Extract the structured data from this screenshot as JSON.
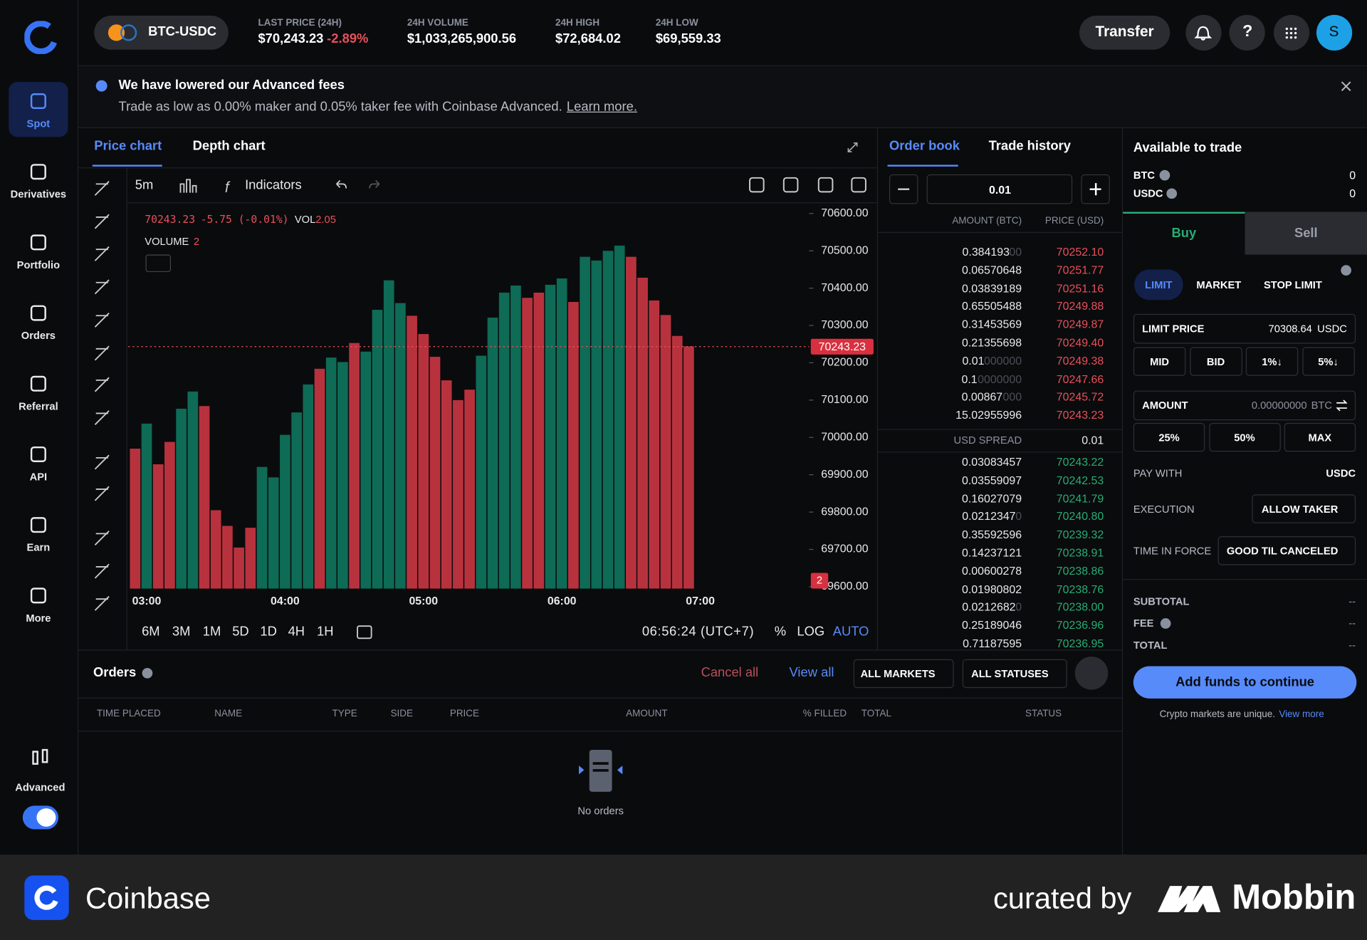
{
  "sidebar": {
    "items": [
      "Spot",
      "Derivatives",
      "Portfolio",
      "Orders",
      "Referral",
      "API",
      "Earn",
      "More"
    ],
    "advanced": "Advanced"
  },
  "header": {
    "pair": "BTC-USDC",
    "stats": [
      {
        "label": "LAST PRICE (24H)",
        "value": "$70,243.23",
        "change": "-2.89%"
      },
      {
        "label": "24H VOLUME",
        "value": "$1,033,265,900.56"
      },
      {
        "label": "24H HIGH",
        "value": "$72,684.02"
      },
      {
        "label": "24H LOW",
        "value": "$69,559.33"
      }
    ],
    "transfer": "Transfer",
    "help": "?",
    "avatar": "S"
  },
  "banner": {
    "title": "We have lowered our Advanced fees",
    "text": "Trade as low as 0.00% maker and 0.05% taker fee with Coinbase Advanced.",
    "link": "Learn more."
  },
  "chart_panel": {
    "tabs": [
      "Price chart",
      "Depth chart"
    ],
    "interval": "5m",
    "indicators": "Indicators",
    "legend_price": "70243.23",
    "legend_change": "-5.75 (-0.01%)",
    "vol_label": "VOL",
    "vol_value": "2.05",
    "volume_label": "VOLUME",
    "volume_value": "2",
    "ranges": [
      "6M",
      "3M",
      "1M",
      "5D",
      "1D",
      "4H",
      "1H"
    ],
    "clock": "06:56:24 (UTC+7)",
    "percent": "%",
    "log": "LOG",
    "auto": "AUTO"
  },
  "chart_data": {
    "type": "bar",
    "categories": [
      null,
      "03:00",
      null,
      null,
      null,
      null,
      null,
      null,
      null,
      null,
      null,
      null,
      null,
      "04:00",
      null,
      null,
      null,
      null,
      null,
      null,
      null,
      null,
      null,
      null,
      null,
      "05:00",
      null,
      null,
      null,
      null,
      null,
      null,
      null,
      null,
      null,
      null,
      null,
      "06:00",
      null,
      null,
      null,
      null,
      null,
      null,
      null,
      null,
      null,
      null,
      null,
      "07:00"
    ],
    "values": [
      69970,
      70037,
      69928,
      69988,
      70077,
      70123,
      70084,
      69805,
      69763,
      69705,
      69758,
      69921,
      69893,
      70007,
      70067,
      70142,
      70184,
      70214,
      70202,
      70253,
      70230,
      70342,
      70421,
      70360,
      70326,
      70277,
      70216,
      70153,
      70100,
      70128,
      70219,
      70321,
      70388,
      70407,
      70374,
      70388,
      70409,
      70426,
      70363,
      70484,
      70474,
      70500,
      70514,
      70484,
      70428,
      70367,
      70328,
      70272,
      70244,
      null
    ],
    "colors": [
      "#b8323e",
      "#0e6b56",
      "#b8323e",
      "#b8323e",
      "#0e6b56",
      "#0e6b56",
      "#b8323e",
      "#b8323e",
      "#b8323e",
      "#b8323e",
      "#b8323e",
      "#0e6b56",
      "#0e6b56",
      "#0e6b56",
      "#0e6b56",
      "#0e6b56",
      "#b8323e",
      "#0e6b56",
      "#0e6b56",
      "#b8323e",
      "#0e6b56",
      "#0e6b56",
      "#0e6b56",
      "#0e6b56",
      "#b8323e",
      "#b8323e",
      "#b8323e",
      "#b8323e",
      "#b8323e",
      "#b8323e",
      "#0e6b56",
      "#0e6b56",
      "#0e6b56",
      "#0e6b56",
      "#b8323e",
      "#b8323e",
      "#0e6b56",
      "#0e6b56",
      "#b8323e",
      "#0e6b56",
      "#0e6b56",
      "#0e6b56",
      "#0e6b56",
      "#b8323e",
      "#b8323e",
      "#b8323e",
      "#b8323e",
      "#b8323e",
      "#b8323e",
      null
    ],
    "ylim": [
      69595,
      70623
    ],
    "yticks": [
      {
        "value": 70600,
        "label": "70600.00"
      },
      {
        "value": 70500,
        "label": "70500.00"
      },
      {
        "value": 70400,
        "label": "70400.00"
      },
      {
        "value": 70300,
        "label": "70300.00"
      },
      {
        "value": 70200,
        "label": "70200.00"
      },
      {
        "value": 70100,
        "label": "70100.00"
      },
      {
        "value": 70000,
        "label": "70000.00"
      },
      {
        "value": 69900,
        "label": "69900.00"
      },
      {
        "value": 69800,
        "label": "69800.00"
      },
      {
        "value": 69700,
        "label": "69700.00"
      },
      {
        "value": 69600,
        "label": "69600.00"
      }
    ],
    "current_price": {
      "value": 70243.23,
      "label": "70243.23",
      "color": "#e8505b"
    },
    "volume_marker": "2"
  },
  "order_book": {
    "tabs": [
      "Order book",
      "Trade history"
    ],
    "increment": "0.01",
    "amount_header": "AMOUNT (BTC)",
    "price_header": "PRICE (USD)",
    "asks": [
      {
        "amount": "0.384193",
        "pad": "00",
        "price": "70252.10"
      },
      {
        "amount": "0.06570648",
        "price": "70251.77"
      },
      {
        "amount": "0.03839189",
        "price": "70251.16"
      },
      {
        "amount": "0.65505488",
        "price": "70249.88"
      },
      {
        "amount": "0.31453569",
        "price": "70249.87"
      },
      {
        "amount": "0.21355698",
        "price": "70249.40"
      },
      {
        "amount": "0.01",
        "pad": "000000",
        "price": "70249.38"
      },
      {
        "amount": "0.1",
        "pad": "0000000",
        "price": "70247.66"
      },
      {
        "amount": "0.00867",
        "pad": "000",
        "price": "70245.72"
      },
      {
        "amount": "15.02955996",
        "price": "70243.23"
      }
    ],
    "spread_label": "USD SPREAD",
    "spread": "0.01",
    "bids": [
      {
        "amount": "0.03083457",
        "price": "70243.22"
      },
      {
        "amount": "0.03559097",
        "price": "70242.53"
      },
      {
        "amount": "0.16027079",
        "price": "70241.79"
      },
      {
        "amount": "0.0212347",
        "pad": "0",
        "price": "70240.80"
      },
      {
        "amount": "0.35592596",
        "price": "70239.32"
      },
      {
        "amount": "0.14237121",
        "price": "70238.91"
      },
      {
        "amount": "0.00600278",
        "price": "70238.86"
      },
      {
        "amount": "0.01980802",
        "price": "70238.76"
      },
      {
        "amount": "0.0212682",
        "pad": "0",
        "price": "70238.00"
      },
      {
        "amount": "0.25189046",
        "price": "70236.96"
      },
      {
        "amount": "0.71187595",
        "price": "70236.95"
      }
    ]
  },
  "trade": {
    "title": "Available to trade",
    "balances": [
      {
        "asset": "BTC",
        "amount": "0"
      },
      {
        "asset": "USDC",
        "amount": "0"
      }
    ],
    "buy": "Buy",
    "sell": "Sell",
    "order_types": [
      "LIMIT",
      "MARKET",
      "STOP LIMIT"
    ],
    "limit_label": "LIMIT PRICE",
    "limit_value": "70308.64",
    "limit_unit": "USDC",
    "price_buttons": [
      "MID",
      "BID",
      "1%↓",
      "5%↓"
    ],
    "amount_label": "AMOUNT",
    "amount_value": "0.00000000",
    "amount_unit": "BTC",
    "amount_buttons": [
      "25%",
      "50%",
      "MAX"
    ],
    "pay_label": "PAY WITH",
    "pay_value": "USDC",
    "exec_label": "EXECUTION",
    "exec_value": "ALLOW TAKER",
    "tif_label": "TIME IN FORCE",
    "tif_value": "GOOD TIL CANCELED",
    "summary": [
      {
        "label": "SUBTOTAL",
        "value": "--"
      },
      {
        "label": "FEE",
        "value": "--"
      },
      {
        "label": "TOTAL",
        "value": "--"
      }
    ],
    "cta": "Add funds to continue",
    "note": "Crypto markets are unique.",
    "note_link": "View more"
  },
  "orders": {
    "title": "Orders",
    "cancel_all": "Cancel all",
    "view_all": "View all",
    "markets": "ALL MARKETS",
    "statuses": "ALL STATUSES",
    "columns": [
      "TIME PLACED",
      "NAME",
      "TYPE",
      "SIDE",
      "PRICE",
      "AMOUNT",
      "% FILLED",
      "TOTAL",
      "STATUS"
    ],
    "empty": "No orders"
  },
  "footer": {
    "brand": "Coinbase",
    "curated": "curated by",
    "mobbin": "Mobbin"
  }
}
